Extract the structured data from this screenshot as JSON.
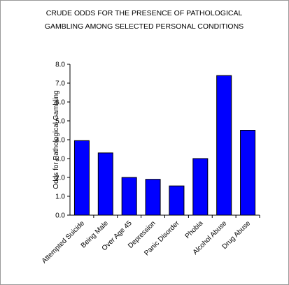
{
  "chart_data": {
    "type": "bar",
    "title": [
      "CRUDE ODDS FOR THE PRESENCE OF PATHOLOGICAL",
      "GAMBLING AMONG SELECTED PERSONAL CONDITIONS"
    ],
    "y_label": "Odds for Pathological Gambling",
    "categories": [
      "Attempted Suicide",
      "Being Male",
      "Over Age 45",
      "Depression",
      "Panic Disorder",
      "Phobia",
      "Alcohol Abuse",
      "Drug Abuse"
    ],
    "values": [
      3.95,
      3.3,
      2.0,
      1.9,
      1.55,
      3.0,
      7.4,
      4.5
    ],
    "color": "#0000ff",
    "ylim": [
      0,
      8
    ],
    "yticks": [
      {
        "value": 0,
        "label": "0.0"
      },
      {
        "value": 1,
        "label": "1.0"
      },
      {
        "value": 2,
        "label": "2.0"
      },
      {
        "value": 3,
        "label": "3.0"
      },
      {
        "value": 4,
        "label": "4.0"
      },
      {
        "value": 5,
        "label": "5.0"
      },
      {
        "value": 6,
        "label": "6.0"
      },
      {
        "value": 7,
        "label": "7.0"
      },
      {
        "value": 8,
        "label": "8.0"
      }
    ]
  }
}
